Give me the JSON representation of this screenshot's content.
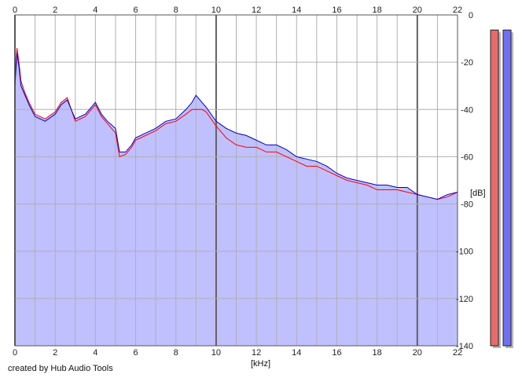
{
  "chart_data": {
    "type": "area",
    "xlabel": "[kHz]",
    "ylabel": "[dB]",
    "xlim": [
      0,
      22
    ],
    "ylim": [
      -140,
      0
    ],
    "x_ticks": [
      "0",
      "2",
      "4",
      "6",
      "8",
      "10",
      "12",
      "14",
      "16",
      "18",
      "20",
      "22"
    ],
    "y_ticks": [
      "0",
      "-20",
      "-40",
      "-60",
      "-80",
      "-100",
      "-120",
      "-140"
    ],
    "grid": true,
    "x_major_every": 10,
    "fill_color": "#c0c0ff",
    "series": [
      {
        "color": "#0000cc",
        "x": [
          0,
          0.1,
          0.2,
          0.3,
          0.5,
          0.7,
          1,
          1.5,
          2,
          2.3,
          2.6,
          3,
          3.5,
          4,
          4.3,
          4.6,
          5,
          5.2,
          5.5,
          5.8,
          6,
          6.5,
          7,
          7.5,
          8,
          8.5,
          8.8,
          9,
          9.3,
          9.5,
          10,
          10.5,
          11,
          11.5,
          12,
          12.5,
          13,
          13.5,
          14,
          14.5,
          15,
          15.5,
          16,
          16.5,
          17,
          17.5,
          18,
          18.5,
          19,
          19.5,
          20,
          20.5,
          21,
          21.5,
          22
        ],
        "y": [
          -30,
          -16,
          -22,
          -30,
          -34,
          -38,
          -43,
          -45,
          -42,
          -38,
          -36,
          -44,
          -42,
          -37,
          -42,
          -45,
          -48,
          -58,
          -58,
          -55,
          -52,
          -50,
          -48,
          -45,
          -44,
          -40,
          -37,
          -34,
          -37,
          -39,
          -45,
          -48,
          -50,
          -51,
          -53,
          -55,
          -55,
          -57,
          -60,
          -61,
          -62,
          -64,
          -67,
          -69,
          -70,
          -71,
          -72,
          -72,
          -73,
          -73,
          -76,
          -77,
          -78,
          -76,
          -75
        ]
      },
      {
        "color": "#ff0000",
        "x": [
          0,
          0.1,
          0.2,
          0.3,
          0.5,
          0.7,
          1,
          1.5,
          2,
          2.3,
          2.6,
          3,
          3.5,
          4,
          4.3,
          4.6,
          5,
          5.2,
          5.5,
          5.8,
          6,
          6.5,
          7,
          7.5,
          8,
          8.5,
          8.8,
          9,
          9.3,
          9.5,
          10,
          10.5,
          11,
          11.5,
          12,
          12.5,
          13,
          13.5,
          14,
          14.5,
          15,
          15.5,
          16,
          16.5,
          17,
          17.5,
          18,
          18.5,
          19,
          19.5,
          20,
          20.5,
          21,
          21.5,
          22
        ],
        "y": [
          -28,
          -14,
          -20,
          -28,
          -33,
          -37,
          -42,
          -44,
          -41,
          -37,
          -35,
          -45,
          -43,
          -38,
          -43,
          -46,
          -50,
          -60,
          -59,
          -56,
          -53,
          -51,
          -49,
          -46,
          -45,
          -42,
          -40,
          -40,
          -40,
          -41,
          -47,
          -52,
          -55,
          -56,
          -56,
          -58,
          -58,
          -60,
          -62,
          -64,
          -64,
          -66,
          -68,
          -70,
          -71,
          -72,
          -74,
          -74,
          -74,
          -75,
          -76,
          -77,
          -78,
          -77,
          -75
        ]
      }
    ],
    "level_meters": [
      {
        "color": "#e86a6a",
        "value": 0.98
      },
      {
        "color": "#7070f0",
        "value": 0.98
      }
    ]
  },
  "footer": "created by Hub Audio Tools",
  "xunit": "[kHz]",
  "yunit": "[dB]"
}
